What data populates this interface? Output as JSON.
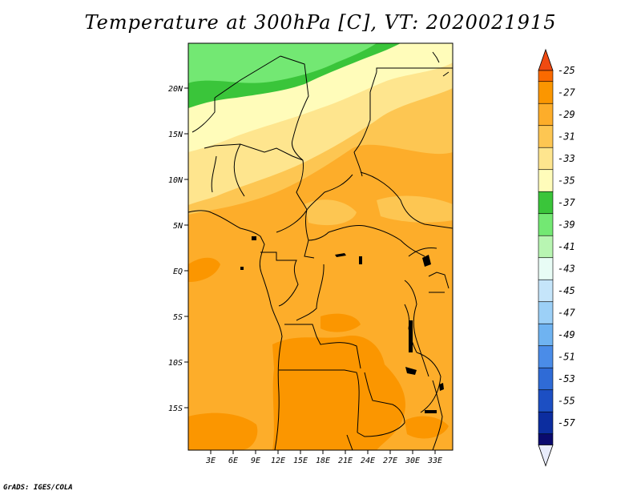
{
  "title": "Temperature at 300hPa [C], VT: 2020021915",
  "credit": "GrADS: IGES/COLA",
  "lat_labels": [
    "20N",
    "15N",
    "10N",
    "5N",
    "EQ",
    "5S",
    "10S",
    "15S"
  ],
  "lon_labels": [
    "3E",
    "6E",
    "9E",
    "12E",
    "15E",
    "18E",
    "21E",
    "24E",
    "27E",
    "30E",
    "33E"
  ],
  "colorbar": {
    "labels": [
      "-25",
      "-27",
      "-29",
      "-31",
      "-33",
      "-35",
      "-37",
      "-39",
      "-41",
      "-43",
      "-45",
      "-47",
      "-49",
      "-51",
      "-53",
      "-55",
      "-57"
    ],
    "top_arrow_color": "#f04a12",
    "bottom_arrow_color": "#e8ecfb",
    "colors": [
      "#fa6a00",
      "#fb9600",
      "#fdad2a",
      "#fdc652",
      "#fee58e",
      "#fffcba",
      "#3ac53a",
      "#73e873",
      "#b8f5b2",
      "#e8fcf5",
      "#c5e5fa",
      "#9cd0f7",
      "#6fb3f1",
      "#4a8ce8",
      "#2f6bd6",
      "#1c4fc3",
      "#0c2d9f",
      "#0a0a6e"
    ]
  },
  "colors": {
    "orange_south": "#fb9600",
    "orange_mid": "#fdad2a",
    "yellow_orange": "#fdc652",
    "light_yellow": "#fee58e",
    "pale_yellow": "#fffcba",
    "green": "#3ac53a",
    "light_green": "#73e873"
  }
}
